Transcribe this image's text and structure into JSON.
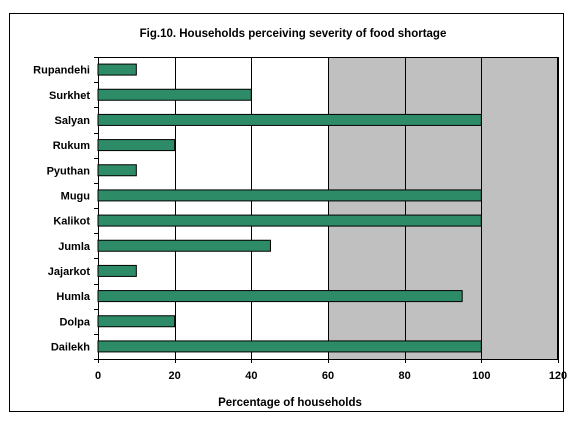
{
  "chart_data": {
    "type": "bar",
    "orientation": "horizontal",
    "title": "Fig.10. Households perceiving severity of food shortage",
    "xlabel": "Percentage of households",
    "ylabel": "",
    "categories": [
      "Rupandehi",
      "Surkhet",
      "Salyan",
      "Rukum",
      "Pyuthan",
      "Mugu",
      "Kalikot",
      "Jumla",
      "Jajarkot",
      "Humla",
      "Dolpa",
      "Dailekh"
    ],
    "values": [
      10,
      40,
      100,
      20,
      10,
      100,
      100,
      45,
      10,
      95,
      20,
      100
    ],
    "xlim": [
      0,
      120
    ],
    "xticks": [
      0,
      20,
      40,
      60,
      80,
      100,
      120
    ],
    "grid": "vertical",
    "legend": "none",
    "colors": {
      "bar": "#2e8b67",
      "bar_border": "#000000",
      "plot_background": "#c0c0c0",
      "gridline": "#000000"
    }
  }
}
